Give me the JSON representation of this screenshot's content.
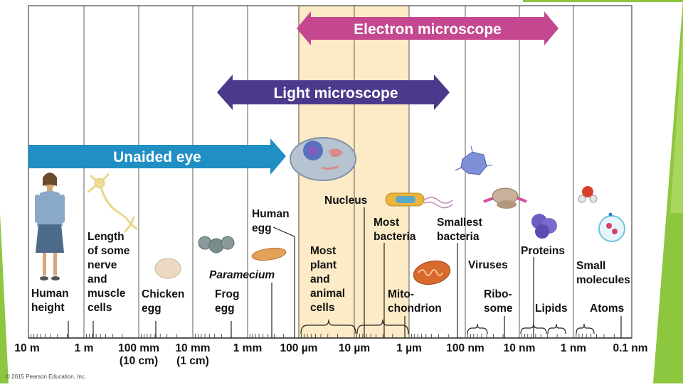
{
  "arrows": {
    "electron": "Electron microscope",
    "light": "Light microscope",
    "unaided": "Unaided eye"
  },
  "scale_ticks": [
    {
      "text": "10 m"
    },
    {
      "text": "1 m"
    },
    {
      "text": "100 mm\n(10 cm)"
    },
    {
      "text": "10 mm\n(1 cm)"
    },
    {
      "text": "1 mm"
    },
    {
      "text": "100 µm"
    },
    {
      "text": "10 µm"
    },
    {
      "text": "1 µm"
    },
    {
      "text": "100 nm"
    },
    {
      "text": "10 nm"
    },
    {
      "text": "1 nm"
    },
    {
      "text": "0.1 nm"
    }
  ],
  "labels": {
    "human_height": "Human\nheight",
    "nerve_cells": "Length\nof some\nnerve\nand\nmuscle\ncells",
    "chicken_egg": "Chicken\negg",
    "frog_egg": "Frog\negg",
    "paramecium": "Paramecium",
    "human_egg": "Human\negg",
    "nucleus": "Nucleus",
    "plant_animal_cells": "Most\nplant\nand\nanimal\ncells",
    "most_bacteria": "Most\nbacteria",
    "mitochondrion": "Mito-\nchondrion",
    "smallest_bacteria": "Smallest\nbacteria",
    "viruses": "Viruses",
    "ribosome": "Ribo-\nsome",
    "proteins": "Proteins",
    "lipids": "Lipids",
    "small_molecules": "Small\nmolecules",
    "atoms": "Atoms"
  },
  "copyright": "© 2015 Pearson Education, Inc.",
  "colors": {
    "electron_arrow": "#c4478f",
    "light_arrow": "#4b3a8c",
    "unaided_arrow": "#1f8fc4",
    "highlight": "#fcebc6",
    "accent_green": "#8dc63f"
  }
}
